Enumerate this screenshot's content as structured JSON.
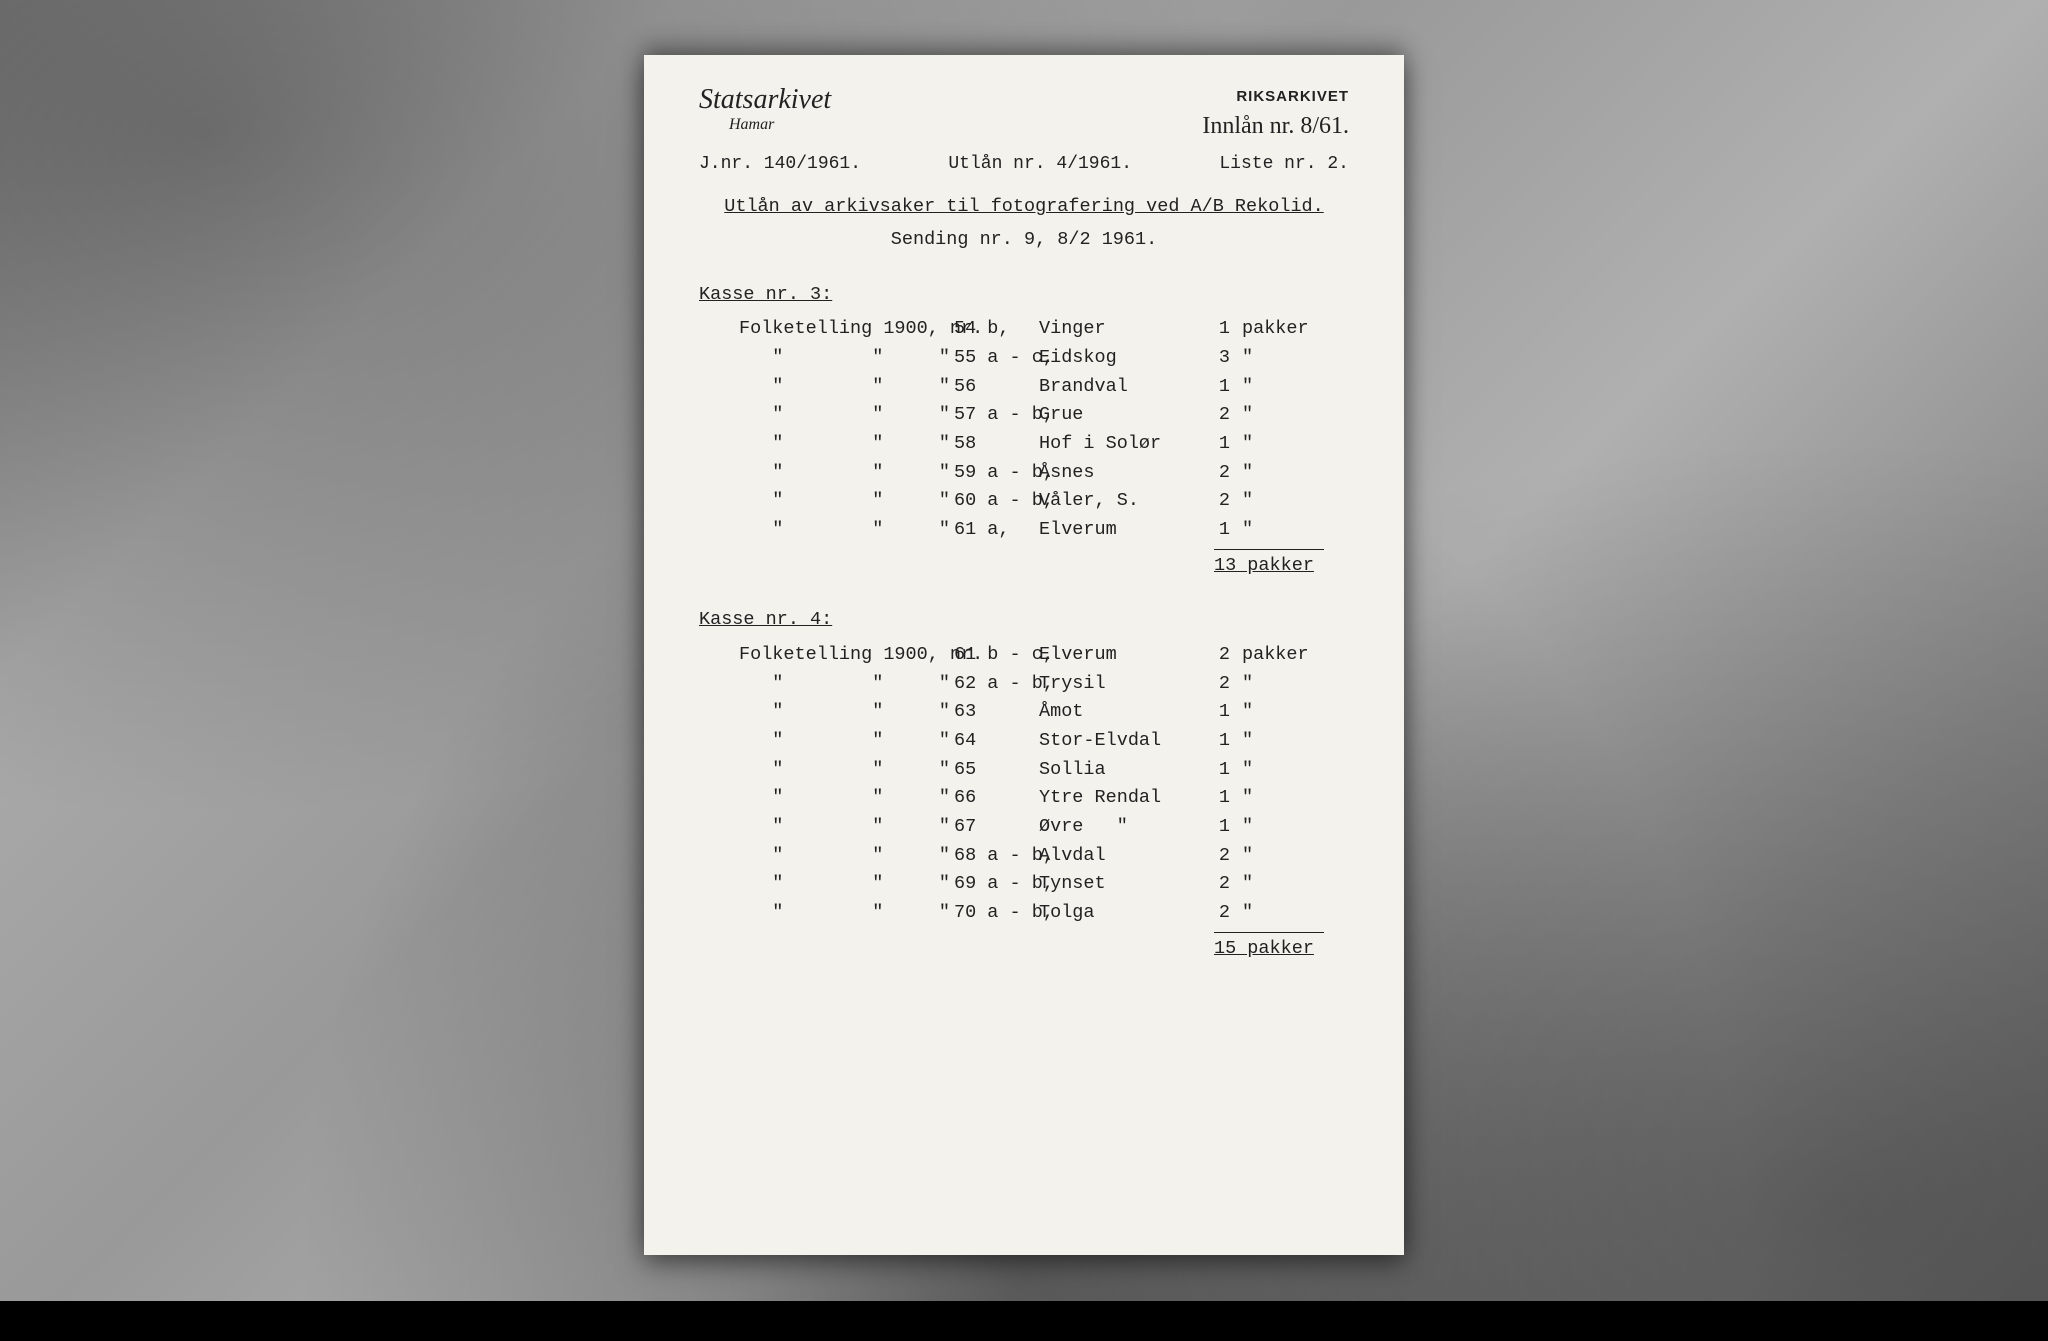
{
  "colors": {
    "paper_bg": "#f4f2ec",
    "text": "#222222",
    "backdrop_mid": "#999999"
  },
  "letterhead": {
    "org": "Statsarkivet",
    "loc": "Hamar",
    "stamp": "RIKSARKIVET",
    "handwritten": "Innlån nr. 8/61."
  },
  "refs": {
    "jnr": "J.nr. 140/1961.",
    "utlan": "Utlån nr. 4/1961.",
    "liste": "Liste nr. 2."
  },
  "title": "Utlån av arkivsaker til fotografering ved A/B Rekolid.",
  "sending": "Sending nr. 9, 8/2 1961.",
  "unit_word": "pakker",
  "ditto": "\"",
  "sections": [
    {
      "head": "Kasse nr. 3:",
      "lead": "Folketelling 1900, nr.",
      "rows": [
        {
          "nr": "54 b,",
          "place": "Vinger",
          "q": "1",
          "unit": "pakker"
        },
        {
          "nr": "55 a - c,",
          "place": "Eidskog",
          "q": "3",
          "unit": "\""
        },
        {
          "nr": "56",
          "place": "Brandval",
          "q": "1",
          "unit": "\""
        },
        {
          "nr": "57 a - b,",
          "place": "Grue",
          "q": "2",
          "unit": "\""
        },
        {
          "nr": "58",
          "place": "Hof i Solør",
          "q": "1",
          "unit": "\""
        },
        {
          "nr": "59 a - b,",
          "place": "Åsnes",
          "q": "2",
          "unit": "\""
        },
        {
          "nr": "60 a - b,",
          "place": "Våler, S.",
          "q": "2",
          "unit": "\""
        },
        {
          "nr": "61 a,",
          "place": "Elverum",
          "q": "1",
          "unit": "\""
        }
      ],
      "total": "13 pakker"
    },
    {
      "head": "Kasse nr. 4:",
      "lead": "Folketelling 1900, nr.",
      "rows": [
        {
          "nr": "61 b - c,",
          "place": "Elverum",
          "q": "2",
          "unit": "pakker"
        },
        {
          "nr": "62 a - b,",
          "place": "Trysil",
          "q": "2",
          "unit": "\""
        },
        {
          "nr": "63",
          "place": "Åmot",
          "q": "1",
          "unit": "\""
        },
        {
          "nr": "64",
          "place": "Stor-Elvdal",
          "q": "1",
          "unit": "\""
        },
        {
          "nr": "65",
          "place": "Sollia",
          "q": "1",
          "unit": "\""
        },
        {
          "nr": "66",
          "place": "Ytre Rendal",
          "q": "1",
          "unit": "\""
        },
        {
          "nr": "67",
          "place": "Øvre   \"",
          "q": "1",
          "unit": "\""
        },
        {
          "nr": "68 a - b,",
          "place": "Alvdal",
          "q": "2",
          "unit": "\""
        },
        {
          "nr": "69 a - b,",
          "place": "Tynset",
          "q": "2",
          "unit": "\""
        },
        {
          "nr": "70 a - b,",
          "place": "Tolga",
          "q": "2",
          "unit": "\""
        }
      ],
      "total": "15 pakker"
    }
  ]
}
